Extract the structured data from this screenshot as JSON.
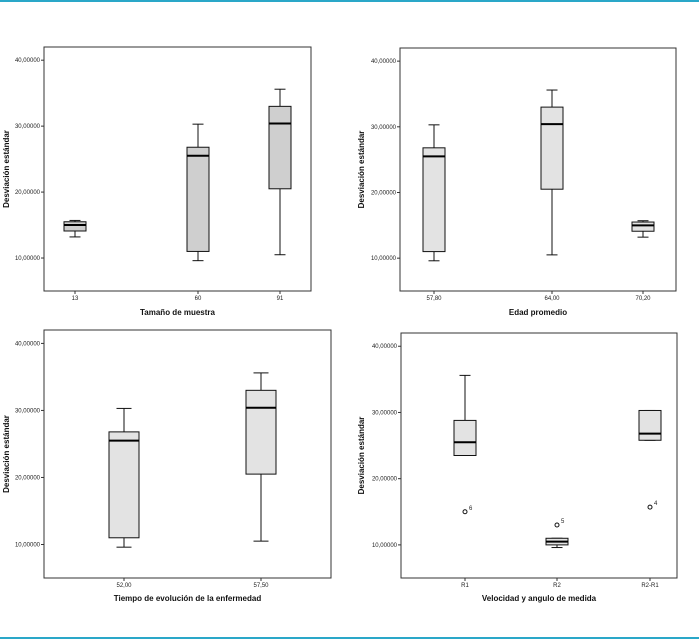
{
  "colors": {
    "accent_rule": "#2aa7c8",
    "box_fill_dark": "#cfcfcf",
    "box_fill_light": "#e3e3e3",
    "frame": "#333333"
  },
  "chart_data": [
    {
      "type": "boxplot",
      "xlabel": "Tamaño de muestra",
      "ylabel": "Desviación estándar",
      "ylim": [
        5,
        42
      ],
      "yticks": [
        10,
        20,
        30,
        40
      ],
      "ytick_labels": [
        "10,00000",
        "20,00000",
        "30,00000",
        "40,00000"
      ],
      "box_fill": "#cfcfcf",
      "categories": [
        {
          "label": "13",
          "min": 13.2,
          "q1": 14.1,
          "median": 15.0,
          "q3": 15.5,
          "max": 15.7,
          "outliers": []
        },
        {
          "label": "60",
          "min": 9.6,
          "q1": 11.0,
          "median": 25.5,
          "q3": 26.8,
          "max": 30.3,
          "outliers": []
        },
        {
          "label": "91",
          "min": 10.5,
          "q1": 20.5,
          "median": 30.4,
          "q3": 33.0,
          "max": 35.6,
          "outliers": []
        }
      ]
    },
    {
      "type": "boxplot",
      "xlabel": "Edad promedio",
      "ylabel": "Desviación estándar",
      "ylim": [
        5,
        42
      ],
      "yticks": [
        10,
        20,
        30,
        40
      ],
      "ytick_labels": [
        "10,00000",
        "20,00000",
        "30,00000",
        "40,00000"
      ],
      "box_fill": "#e3e3e3",
      "categories": [
        {
          "label": "57,80",
          "min": 9.6,
          "q1": 11.0,
          "median": 25.5,
          "q3": 26.8,
          "max": 30.3,
          "outliers": []
        },
        {
          "label": "64,00",
          "min": 10.5,
          "q1": 20.5,
          "median": 30.4,
          "q3": 33.0,
          "max": 35.6,
          "outliers": []
        },
        {
          "label": "70,20",
          "min": 13.2,
          "q1": 14.1,
          "median": 15.0,
          "q3": 15.5,
          "max": 15.7,
          "outliers": []
        }
      ]
    },
    {
      "type": "boxplot",
      "xlabel": "Tiempo de evolución de la enfermedad",
      "ylabel": "Desviación estándar",
      "ylim": [
        5,
        42
      ],
      "yticks": [
        10,
        20,
        30,
        40
      ],
      "ytick_labels": [
        "10,00000",
        "20,00000",
        "30,00000",
        "40,00000"
      ],
      "box_fill": "#e3e3e3",
      "categories": [
        {
          "label": "52,00",
          "min": 9.6,
          "q1": 11.0,
          "median": 25.5,
          "q3": 26.8,
          "max": 30.3,
          "outliers": []
        },
        {
          "label": "57,50",
          "min": 10.5,
          "q1": 20.5,
          "median": 30.4,
          "q3": 33.0,
          "max": 35.6,
          "outliers": []
        }
      ]
    },
    {
      "type": "boxplot",
      "xlabel": "Velocidad y angulo de medida",
      "ylabel": "Desviación estándar",
      "ylim": [
        5,
        42
      ],
      "yticks": [
        10,
        20,
        30,
        40
      ],
      "ytick_labels": [
        "10,00000",
        "20,00000",
        "30,00000",
        "40,00000"
      ],
      "box_fill": "#e3e3e3",
      "categories": [
        {
          "label": "R1",
          "min": 23.5,
          "q1": 23.5,
          "median": 25.5,
          "q3": 28.8,
          "max": 35.6,
          "outliers": [
            {
              "value": 15.0,
              "label": "6"
            }
          ]
        },
        {
          "label": "R2",
          "min": 9.6,
          "q1": 10.0,
          "median": 10.5,
          "q3": 11.0,
          "max": 11.0,
          "outliers": [
            {
              "value": 13.0,
              "label": "5"
            }
          ]
        },
        {
          "label": "R2-R1",
          "min": 25.8,
          "q1": 25.8,
          "median": 26.8,
          "q3": 30.3,
          "max": 30.3,
          "outliers": [
            {
              "value": 15.7,
              "label": "4"
            }
          ]
        }
      ]
    }
  ]
}
